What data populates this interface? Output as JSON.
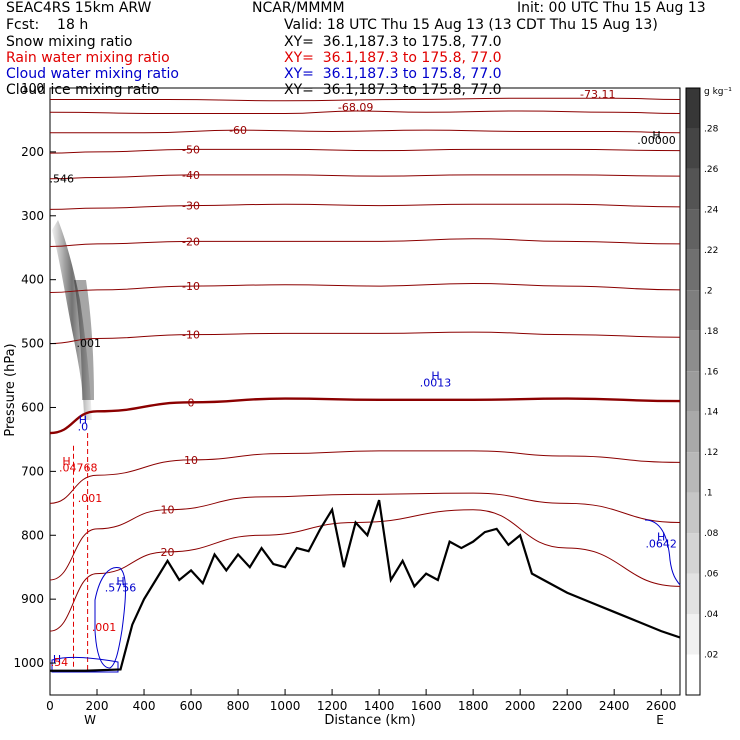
{
  "header": {
    "model": "SEAC4RS 15km ARW",
    "org": "NCAR/MMMM",
    "init": "Init: 00 UTC Thu 15 Aug 13",
    "fcst": "Fcst:    18 h",
    "valid": "Valid: 18 UTC Thu 15 Aug 13 (13 CDT Thu 15 Aug 13)",
    "fields": [
      {
        "name": "Snow mixing ratio",
        "xy": "XY=  36.1,187.3 to 175.8, 77.0",
        "color": "#000000"
      },
      {
        "name": "Rain water mixing ratio",
        "xy": "XY=  36.1,187.3 to 175.8, 77.0",
        "color": "#e00000"
      },
      {
        "name": "Cloud water mixing ratio",
        "xy": "XY=  36.1,187.3 to 175.8, 77.0",
        "color": "#0000cc"
      },
      {
        "name": "Cloud ice mixing ratio",
        "xy": "XY=  36.1,187.3 to 175.8, 77.0",
        "color": "#000000"
      }
    ]
  },
  "chart_data": {
    "type": "cross-section",
    "xlabel": "Distance (km)",
    "ylabel": "Pressure (hPa)",
    "xlim": [
      0,
      2680
    ],
    "ylim": [
      1050,
      100
    ],
    "x_ticks": [
      0,
      200,
      400,
      600,
      800,
      1000,
      1200,
      1400,
      1600,
      1800,
      2000,
      2200,
      2400,
      2600
    ],
    "y_ticks": [
      200,
      300,
      400,
      500,
      600,
      700,
      800,
      900,
      1000
    ],
    "y_ticks_extra": "100",
    "endpoints": {
      "left": "W",
      "right": "E"
    },
    "colorbar": {
      "unit": "g kg⁻¹",
      "ticks": [
        ".02",
        ".04",
        ".06",
        ".08",
        ".1",
        ".12",
        ".14",
        ".16",
        ".18",
        ".2",
        ".22",
        ".24",
        ".26",
        ".28"
      ],
      "values": [
        0.02,
        0.04,
        0.06,
        0.08,
        0.1,
        0.12,
        0.14,
        0.16,
        0.18,
        0.2,
        0.22,
        0.24,
        0.26,
        0.28
      ]
    },
    "temperature_contours": [
      {
        "label": "-73.11",
        "x": [
          0,
          500,
          1000,
          1500,
          2000,
          2400,
          2680
        ],
        "p": [
          118,
          118,
          120,
          118,
          116,
          116,
          118
        ]
      },
      {
        "label": "-68.09",
        "x": [
          0,
          500,
          1000,
          1300,
          1600,
          2000,
          2400,
          2680
        ],
        "p": [
          138,
          140,
          140,
          136,
          138,
          136,
          138,
          140
        ]
      },
      {
        "label": "-60",
        "x": [
          0,
          400,
          800,
          1200,
          1600,
          2000,
          2400,
          2680
        ],
        "p": [
          170,
          170,
          166,
          168,
          166,
          168,
          168,
          170
        ]
      },
      {
        "label": "-50",
        "x": [
          0,
          200,
          600,
          1000,
          1400,
          1800,
          2200,
          2680
        ],
        "p": [
          202,
          200,
          196,
          196,
          198,
          196,
          196,
          198
        ]
      },
      {
        "label": "-40",
        "x": [
          0,
          200,
          600,
          1000,
          1400,
          1800,
          2200,
          2680
        ],
        "p": [
          242,
          240,
          236,
          236,
          238,
          236,
          236,
          238
        ]
      },
      {
        "label": "-30",
        "x": [
          0,
          200,
          600,
          1000,
          1400,
          1800,
          2200,
          2680
        ],
        "p": [
          290,
          288,
          284,
          282,
          284,
          282,
          282,
          286
        ]
      },
      {
        "label": "-20",
        "x": [
          0,
          200,
          600,
          1000,
          1400,
          1800,
          2200,
          2680
        ],
        "p": [
          348,
          344,
          340,
          340,
          340,
          336,
          340,
          344
        ]
      },
      {
        "label": "-10",
        "x": [
          0,
          200,
          600,
          1000,
          1400,
          1800,
          2200,
          2680
        ],
        "p": [
          420,
          416,
          410,
          408,
          410,
          406,
          410,
          416
        ]
      },
      {
        "label": "-10",
        "x": [
          0,
          200,
          600,
          1000,
          1400,
          1800,
          2200,
          2680
        ],
        "p": [
          500,
          492,
          486,
          484,
          484,
          482,
          486,
          490
        ]
      },
      {
        "label": "0",
        "x": [
          0,
          200,
          600,
          1000,
          1400,
          1800,
          2200,
          2680
        ],
        "p": [
          640,
          606,
          592,
          586,
          588,
          588,
          586,
          590
        ]
      },
      {
        "label": "10",
        "x": [
          0,
          200,
          600,
          1000,
          1400,
          1800,
          2200,
          2680
        ],
        "p": [
          750,
          706,
          682,
          672,
          668,
          668,
          676,
          686
        ]
      },
      {
        "label": "10",
        "x": [
          0,
          200,
          500,
          900,
          1300,
          1800,
          2200,
          2680
        ],
        "p": [
          870,
          790,
          760,
          740,
          736,
          734,
          750,
          780
        ]
      },
      {
        "label": "20",
        "x": [
          0,
          200,
          500,
          900,
          1300,
          1800,
          2200,
          2680
        ],
        "p": [
          950,
          860,
          826,
          800,
          780,
          760,
          820,
          880
        ]
      }
    ],
    "terrain": {
      "x": [
        0,
        150,
        300,
        350,
        400,
        450,
        500,
        550,
        600,
        650,
        700,
        750,
        800,
        850,
        900,
        950,
        1000,
        1050,
        1100,
        1150,
        1200,
        1250,
        1300,
        1350,
        1400,
        1450,
        1500,
        1550,
        1600,
        1650,
        1700,
        1750,
        1800,
        1850,
        1900,
        1950,
        2000,
        2050,
        2100,
        2200,
        2300,
        2400,
        2500,
        2600,
        2680
      ],
      "p": [
        1012,
        1012,
        1010,
        940,
        900,
        870,
        840,
        870,
        855,
        875,
        830,
        855,
        830,
        850,
        820,
        845,
        850,
        820,
        825,
        790,
        760,
        850,
        780,
        800,
        745,
        870,
        840,
        880,
        860,
        870,
        810,
        820,
        810,
        795,
        790,
        815,
        800,
        860,
        870,
        890,
        905,
        920,
        935,
        950,
        960
      ]
    },
    "snow_max_label": ".546",
    "annotations": [
      {
        "text": ".001",
        "color": "#000000",
        "x": 165,
        "p": 505
      },
      {
        "text": "-68.09",
        "color": "#990000",
        "x": 1300,
        "p": 136
      },
      {
        "text": "-73.11",
        "color": "#990000",
        "x": 2330,
        "p": 116
      },
      {
        "text": "H",
        "color": "#000000",
        "x": 2580,
        "p": 180
      },
      {
        "text": ".00000",
        "color": "#000000",
        "x": 2580,
        "p": 188
      },
      {
        "text": "H",
        "color": "#0000cc",
        "x": 1640,
        "p": 556
      },
      {
        "text": ".0013",
        "color": "#0000cc",
        "x": 1640,
        "p": 567
      },
      {
        "text": "H",
        "color": "#0000cc",
        "x": 140,
        "p": 625
      },
      {
        "text": ".0",
        "color": "#0000cc",
        "x": 140,
        "p": 636
      },
      {
        "text": "H",
        "color": "#e00000",
        "x": 70,
        "p": 690
      },
      {
        "text": ".04768",
        "color": "#e00000",
        "x": 120,
        "p": 700
      },
      {
        "text": ".001",
        "color": "#e00000",
        "x": 170,
        "p": 748
      },
      {
        "text": ".001",
        "color": "#e00000",
        "x": 230,
        "p": 950
      },
      {
        "text": "H",
        "color": "#0000cc",
        "x": 300,
        "p": 878
      },
      {
        "text": ".5756",
        "color": "#0000cc",
        "x": 300,
        "p": 888
      },
      {
        "text": "H",
        "color": "#0000cc",
        "x": 2600,
        "p": 808
      },
      {
        "text": ".0642",
        "color": "#0000cc",
        "x": 2600,
        "p": 819
      },
      {
        "text": "H",
        "color": "#0000cc",
        "x": 30,
        "p": 1000
      },
      {
        "text": ".54",
        "color": "#e00000",
        "x": 40,
        "p": 1005
      }
    ],
    "rain_columns": [
      {
        "x": [
          100,
          100
        ],
        "p": [
          660,
          1012
        ]
      },
      {
        "x": [
          160,
          160
        ],
        "p": [
          640,
          1012
        ]
      }
    ]
  }
}
